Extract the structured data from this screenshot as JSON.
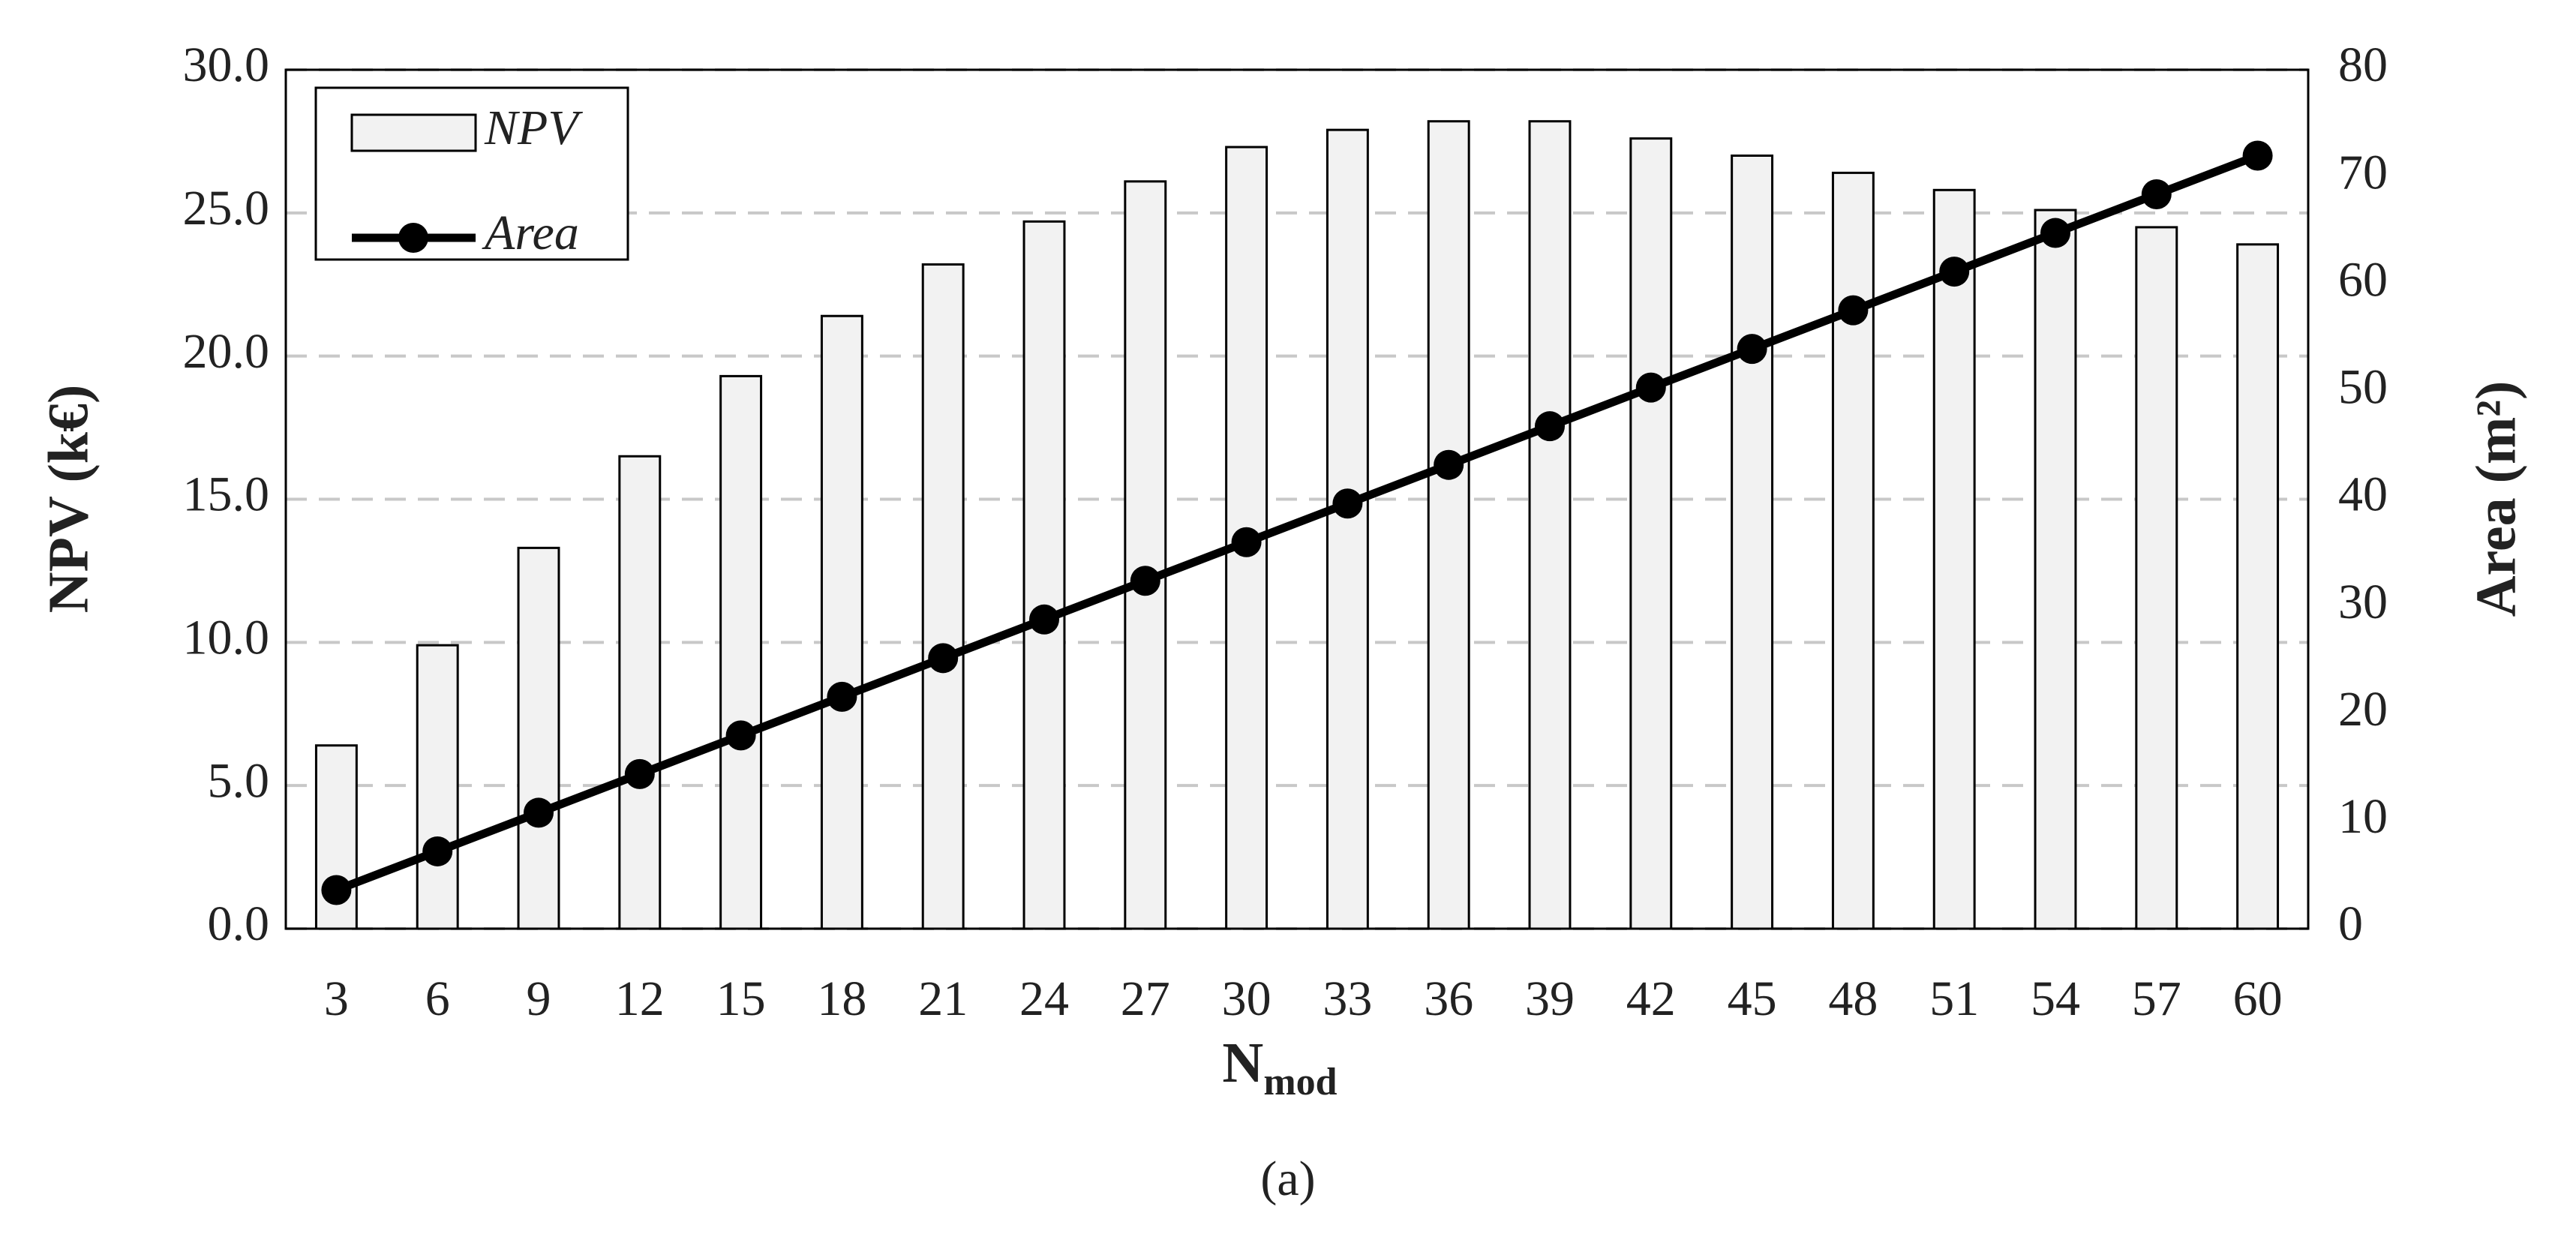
{
  "chart_data": {
    "type": "bar_line",
    "x_label": {
      "main": "N",
      "subscript": "mod"
    },
    "y_label": "NPV (k€)",
    "y2_label": "Area (m²)",
    "categories": [
      "3",
      "6",
      "9",
      "12",
      "15",
      "18",
      "21",
      "24",
      "27",
      "30",
      "33",
      "36",
      "39",
      "42",
      "45",
      "48",
      "51",
      "54",
      "57",
      "60"
    ],
    "series": [
      {
        "name": "NPV",
        "type": "bar",
        "color": "#f2f2f2",
        "values": [
          6.4,
          9.9,
          13.3,
          16.5,
          19.3,
          21.4,
          23.2,
          24.7,
          26.1,
          27.3,
          27.9,
          28.2,
          28.2,
          27.6,
          27.0,
          26.4,
          25.8,
          25.1,
          24.5,
          23.9
        ]
      },
      {
        "name": "Area",
        "type": "line",
        "axis": "y2",
        "color": "#000000",
        "values": [
          3.6,
          7.2,
          10.8,
          14.4,
          18.0,
          21.6,
          25.2,
          28.8,
          32.4,
          36.0,
          39.6,
          43.2,
          46.8,
          50.4,
          54.0,
          57.6,
          61.2,
          64.8,
          68.4,
          72.0
        ]
      }
    ],
    "ylim": [
      0,
      30
    ],
    "yticks": [
      {
        "value": 0,
        "label": "0.0"
      },
      {
        "value": 5,
        "label": "5.0"
      },
      {
        "value": 10,
        "label": "10.0"
      },
      {
        "value": 15,
        "label": "15.0"
      },
      {
        "value": 20,
        "label": "20.0"
      },
      {
        "value": 25,
        "label": "25.0"
      },
      {
        "value": 30,
        "label": "30.0"
      }
    ],
    "y2lim": [
      0,
      80
    ],
    "y2ticks": [
      0,
      10,
      20,
      30,
      40,
      50,
      60,
      70,
      80
    ],
    "grid": true,
    "legend": "upper-left"
  },
  "caption": "(a)"
}
